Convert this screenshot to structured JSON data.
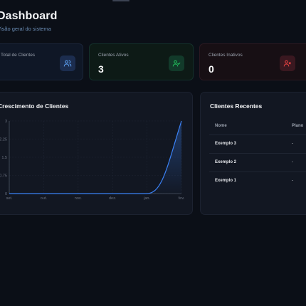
{
  "header": {
    "title": "Dashboard",
    "subtitle": "Visão geral do sistema"
  },
  "stats": [
    {
      "label": "Total de Clientes",
      "value": "",
      "icon": "users-icon",
      "accent": "#60a5fa"
    },
    {
      "label": "Clientes Ativos",
      "value": "3",
      "icon": "user-check-icon",
      "accent": "#22c55e"
    },
    {
      "label": "Clientes Inativos",
      "value": "0",
      "icon": "user-x-icon",
      "accent": "#ef4444"
    }
  ],
  "chart_panel": {
    "title": "Crescimento de Clientes"
  },
  "chart_data": {
    "type": "area",
    "x": [
      "set.",
      "out.",
      "nov.",
      "dez.",
      "jan.",
      "fev."
    ],
    "series": [
      {
        "values": [
          0,
          0,
          0,
          0,
          0,
          3
        ]
      }
    ],
    "yticks": [
      "3",
      "2.25",
      "1.5",
      "0.75",
      "0"
    ],
    "ylim": [
      0,
      3
    ],
    "grid": true,
    "line_color": "#3b82f6"
  },
  "recent": {
    "title": "Clientes Recentes",
    "columns": [
      "Nome",
      "Plano"
    ],
    "rows": [
      {
        "name": "Exemplo 3",
        "plan": "-"
      },
      {
        "name": "Exemplo 2",
        "plan": "-"
      },
      {
        "name": "Exemplo 1",
        "plan": "-"
      }
    ]
  }
}
